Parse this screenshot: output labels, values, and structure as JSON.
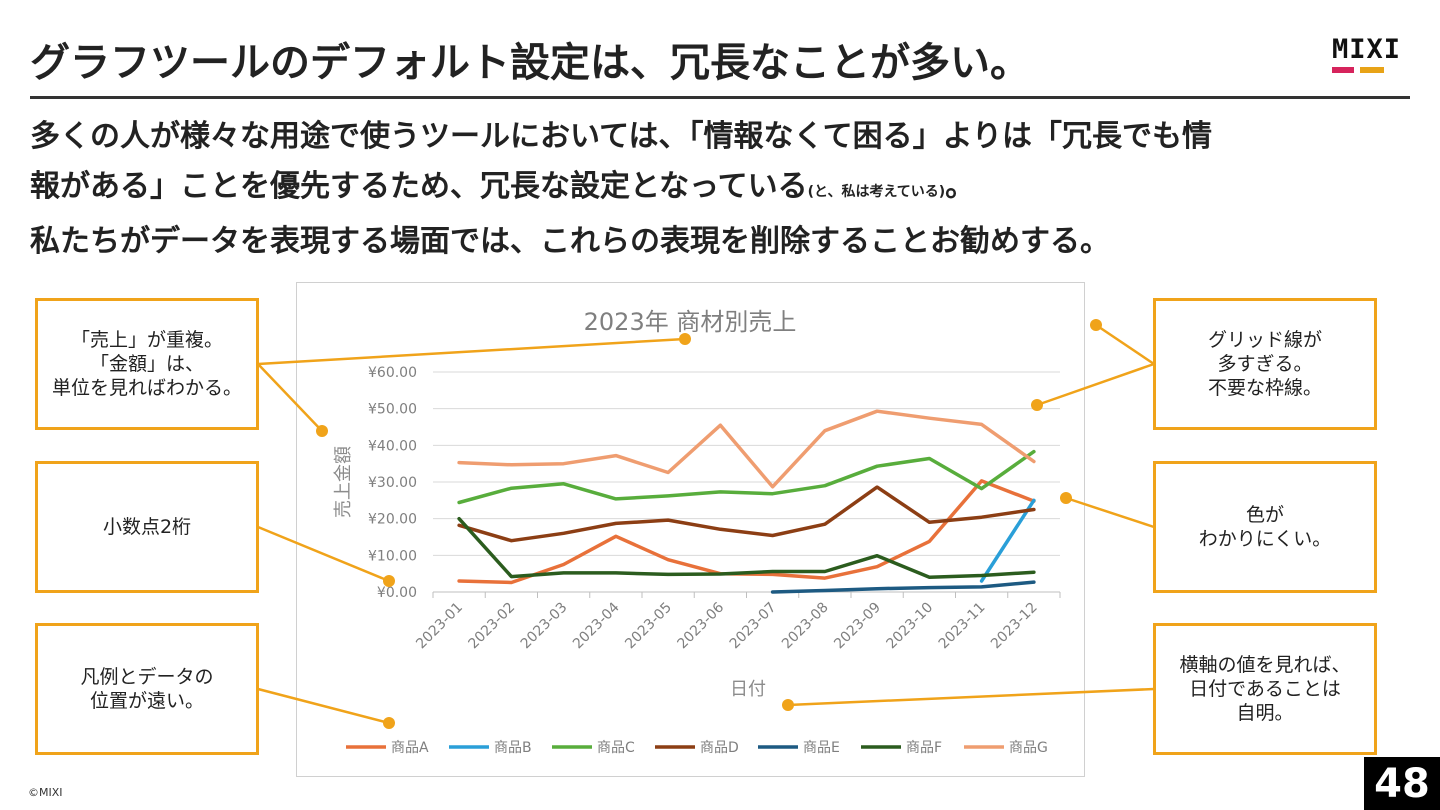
{
  "slide": {
    "title": "グラフツールのデフォルト設定は、冗長なことが多い。",
    "logo_text": "MIXI",
    "body_line1": "多くの人が様々な用途で使うツールにおいては、「情報なくて困る」よりは「冗長でも情",
    "body_line2_main": "報がある」ことを優先するため、冗長な設定となっている",
    "body_line2_small": "(と、私は考えている)",
    "body_line2_end": "。",
    "body_line3": "私たちがデータを表現する場面では、これらの表現を削除することお勧めする。",
    "copyright": "©MIXI",
    "page_number": "48"
  },
  "callouts": {
    "c1": "「売上」が重複。\n「金額」は、\n単位を見ればわかる。",
    "c2": "小数点2桁",
    "c3": "凡例とデータの\n位置が遠い。",
    "c4": "グリッド線が\n多すぎる。\n不要な枠線。",
    "c5": "色が\nわかりにくい。",
    "c6": "横軸の値を見れば、\n日付であることは\n自明。"
  },
  "colors": {
    "accent": "#f0a31a",
    "logo_red": "#d6235c",
    "logo_orange": "#e8a317"
  },
  "chart_data": {
    "type": "line",
    "title": "2023年 商材別売上",
    "xlabel": "日付",
    "ylabel": "売上金額",
    "ylim": [
      0,
      60
    ],
    "yticks": [
      "¥0.00",
      "¥10.00",
      "¥20.00",
      "¥30.00",
      "¥40.00",
      "¥50.00",
      "¥60.00"
    ],
    "grid": true,
    "legend": "bottom",
    "categories": [
      "2023-01",
      "2023-02",
      "2023-03",
      "2023-04",
      "2023-05",
      "2023-06",
      "2023-07",
      "2023-08",
      "2023-09",
      "2023-10",
      "2023-11",
      "2023-12"
    ],
    "series": [
      {
        "name": "商品A",
        "color": "#e8713a",
        "values": [
          3.0,
          2.6,
          7.5,
          15.2,
          8.8,
          5.0,
          4.8,
          3.8,
          6.9,
          13.8,
          30.3,
          24.8
        ]
      },
      {
        "name": "商品B",
        "color": "#2a9fd8",
        "values": [
          null,
          null,
          null,
          null,
          null,
          null,
          null,
          null,
          null,
          null,
          3.0,
          25.0
        ]
      },
      {
        "name": "商品C",
        "color": "#58ad3c",
        "values": [
          24.4,
          28.3,
          29.5,
          25.4,
          26.2,
          27.3,
          26.8,
          29.0,
          34.3,
          36.4,
          28.2,
          38.3
        ]
      },
      {
        "name": "商品D",
        "color": "#8c3e14",
        "values": [
          18.2,
          14.0,
          16.0,
          18.7,
          19.6,
          17.1,
          15.4,
          18.5,
          28.6,
          19.0,
          20.4,
          22.5
        ]
      },
      {
        "name": "商品E",
        "color": "#1d5a82",
        "values": [
          null,
          null,
          null,
          null,
          null,
          null,
          0.0,
          0.4,
          0.9,
          1.2,
          1.4,
          2.7
        ]
      },
      {
        "name": "商品F",
        "color": "#2b5c1e",
        "values": [
          20.0,
          4.2,
          5.2,
          5.2,
          4.8,
          4.9,
          5.6,
          5.6,
          9.9,
          4.0,
          4.5,
          5.4
        ]
      },
      {
        "name": "商品G",
        "color": "#ef9d70",
        "values": [
          35.3,
          34.7,
          35.0,
          37.2,
          32.6,
          45.5,
          28.7,
          44.0,
          49.3,
          47.4,
          45.7,
          35.6
        ]
      }
    ]
  }
}
